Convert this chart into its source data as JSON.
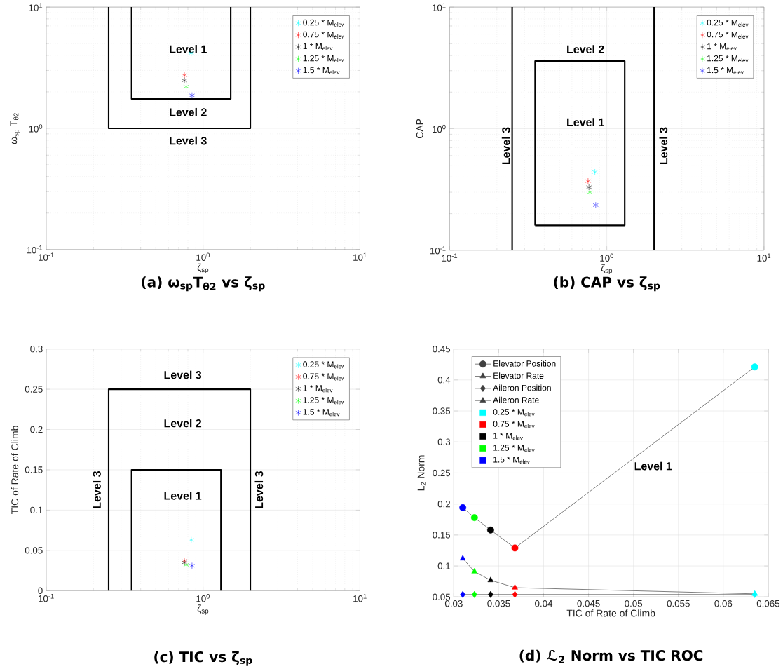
{
  "chart_data": [
    {
      "type": "scatter",
      "title": "(a) ω$_{sp}$T$_{θ2}$ vs ζ$_{sp}$",
      "xlabel": "ζ$_{sp}$",
      "ylabel": "ω$_{sp}$ T$_{θ2}$",
      "log": "xy",
      "xlim": [
        0.1,
        10
      ],
      "ylim": [
        0.1,
        10
      ],
      "xticks": [
        {
          "value": 0.1,
          "label": "10$^{-1}$"
        },
        {
          "value": 1,
          "label": "10$^{0}$"
        },
        {
          "value": 10,
          "label": "10$^{1}$"
        }
      ],
      "yticks": [
        {
          "value": 0.1,
          "label": "10$^{-1}$"
        },
        {
          "value": 1,
          "label": "10$^{0}$"
        },
        {
          "value": 10,
          "label": "10$^{1}$"
        }
      ],
      "grid": true,
      "legend": "top right",
      "marker": "cross",
      "series": [
        {
          "name": "0.25 * M$_{elev}$",
          "color": "#00ffff",
          "x": [
            0.84
          ],
          "values": [
            4.17
          ]
        },
        {
          "name": "0.75 * M$_{elev}$",
          "color": "#ff0000",
          "x": [
            0.76
          ],
          "values": [
            2.74
          ]
        },
        {
          "name": "1 * M$_{elev}$",
          "color": "#000000",
          "x": [
            0.76
          ],
          "values": [
            2.48
          ]
        },
        {
          "name": "1.25 * M$_{elev}$",
          "color": "#00ff00",
          "x": [
            0.78
          ],
          "values": [
            2.21
          ]
        },
        {
          "name": "1.5 * M$_{elev}$",
          "color": "#0000ff",
          "x": [
            0.85
          ],
          "values": [
            1.87
          ]
        },
        {
          "type": "line",
          "color": "#000000",
          "marker": "none",
          "x": [
            0.35,
            0.35,
            1.5,
            1.5
          ],
          "values": [
            10,
            1.75,
            1.75,
            10
          ]
        },
        {
          "type": "line",
          "color": "#000000",
          "marker": "none",
          "x": [
            0.25,
            0.25,
            2,
            2
          ],
          "values": [
            10,
            1,
            1,
            10
          ]
        }
      ],
      "annotations": [
        "Level 1",
        "Level 2",
        "Level 3"
      ]
    },
    {
      "type": "scatter",
      "title": "(b) CAP vs ζ$_{sp}$",
      "xlabel": "ζ$_{sp}$",
      "ylabel": "CAP",
      "log": "xy",
      "xlim": [
        0.1,
        10
      ],
      "ylim": [
        0.1,
        10
      ],
      "xticks": [
        {
          "value": 0.1,
          "label": "10$^{-1}$"
        },
        {
          "value": 1,
          "label": "10$^{0}$"
        },
        {
          "value": 10,
          "label": "10$^{1}$"
        }
      ],
      "yticks": [
        {
          "value": 0.1,
          "label": "10$^{-1}$"
        },
        {
          "value": 1,
          "label": "10$^{0}$"
        },
        {
          "value": 10,
          "label": "10$^{1}$"
        }
      ],
      "grid": true,
      "legend": "top right",
      "marker": "cross",
      "series": [
        {
          "name": "0.25 * M$_{elev}$",
          "color": "#00ffff",
          "x": [
            0.84
          ],
          "values": [
            0.44
          ]
        },
        {
          "name": "0.75 * M$_{elev}$",
          "color": "#ff0000",
          "x": [
            0.76
          ],
          "values": [
            0.37
          ]
        },
        {
          "name": "1 * M$_{elev}$",
          "color": "#000000",
          "x": [
            0.77
          ],
          "values": [
            0.33
          ]
        },
        {
          "name": "1.25 * M$_{elev}$",
          "color": "#00ff00",
          "x": [
            0.78
          ],
          "values": [
            0.3
          ]
        },
        {
          "name": "1.5 * M$_{elev}$",
          "color": "#0000ff",
          "x": [
            0.85
          ],
          "values": [
            0.235
          ]
        },
        {
          "type": "line",
          "color": "#000000",
          "marker": "none",
          "x": [
            0.25,
            0.25
          ],
          "values": [
            0.1,
            10
          ]
        },
        {
          "type": "line",
          "color": "#000000",
          "marker": "none",
          "x": [
            2,
            2
          ],
          "values": [
            0.1,
            10
          ]
        },
        {
          "type": "line",
          "color": "#000000",
          "marker": "none",
          "x": [
            0.35,
            0.35,
            1.3,
            1.3
          ],
          "values": [
            0.16,
            3.6,
            3.6,
            0.16
          ]
        },
        {
          "type": "line",
          "color": "#000000",
          "marker": "none",
          "x": [
            0.35,
            1.3
          ],
          "values": [
            0.16,
            0.16
          ]
        }
      ],
      "annotations": [
        "Level 2",
        "Level 1",
        "Level 3",
        "Level 3"
      ]
    },
    {
      "type": "scatter",
      "title": "(c) TIC vs ζ$_{sp}$",
      "xlabel": "ζ$_{sp}$",
      "ylabel": "TIC of Rate of Climb",
      "log": "x",
      "xlim": [
        0.1,
        10
      ],
      "ylim": [
        0,
        0.3
      ],
      "xticks": [
        {
          "value": 0.1,
          "label": "10$^{-1}$"
        },
        {
          "value": 1,
          "label": "10$^{0}$"
        },
        {
          "value": 10,
          "label": "10$^{1}$"
        }
      ],
      "yticks": [
        0,
        0.05,
        0.1,
        0.15,
        0.2,
        0.25,
        0.3
      ],
      "grid": true,
      "legend": "top right",
      "marker": "cross",
      "series": [
        {
          "name": "0.25 * M$_{elev}$",
          "color": "#00ffff",
          "x": [
            0.84
          ],
          "values": [
            0.063
          ]
        },
        {
          "name": "0.75 * M$_{elev}$",
          "color": "#ff0000",
          "x": [
            0.76
          ],
          "values": [
            0.037
          ]
        },
        {
          "name": "1 * M$_{elev}$",
          "color": "#000000",
          "x": [
            0.76
          ],
          "values": [
            0.035
          ]
        },
        {
          "name": "1.25 * M$_{elev}$",
          "color": "#00ff00",
          "x": [
            0.78
          ],
          "values": [
            0.032
          ]
        },
        {
          "name": "1.5 * M$_{elev}$",
          "color": "#0000ff",
          "x": [
            0.85
          ],
          "values": [
            0.031
          ]
        },
        {
          "type": "line",
          "color": "#000000",
          "marker": "none",
          "x": [
            0.25,
            0.25,
            2,
            2
          ],
          "values": [
            0,
            0.25,
            0.25,
            0
          ]
        },
        {
          "type": "line",
          "color": "#000000",
          "marker": "none",
          "x": [
            0.35,
            0.35,
            1.3,
            1.3
          ],
          "values": [
            0,
            0.15,
            0.15,
            0
          ]
        }
      ],
      "annotations": [
        "Level 3",
        "Level 2",
        "Level 1",
        "Level 3",
        "Level 3"
      ]
    },
    {
      "type": "line",
      "title": "(d) ℒ$_{2}$ Norm vs TIC ROC",
      "xlabel": "TIC of Rate of Climb",
      "ylabel": "L$_{2}$ Norm",
      "xlim": [
        0.03,
        0.065
      ],
      "ylim": [
        0.05,
        0.45
      ],
      "xticks": [
        0.03,
        0.035,
        0.04,
        0.045,
        0.05,
        0.055,
        0.06,
        0.065
      ],
      "yticks": [
        0.05,
        0.1,
        0.15,
        0.2,
        0.25,
        0.3,
        0.35,
        0.4,
        0.45
      ],
      "grid": true,
      "legend": "top left",
      "x": [
        0.031,
        0.0323,
        0.0341,
        0.0368,
        0.0635
      ],
      "series": [
        {
          "name": "Elevator Position",
          "color": "#404040",
          "marker": "circle",
          "colors": [
            "#0000ff",
            "#00ff00",
            "#000000",
            "#ff0000",
            "#00ffff"
          ],
          "values": [
            0.194,
            0.178,
            0.158,
            0.129,
            0.421
          ]
        },
        {
          "name": "Elevator Rate",
          "color": "#404040",
          "marker": "triangle",
          "colors": [
            "#0000ff",
            "#00ff00",
            "#000000",
            "#ff0000",
            "#00ffff"
          ],
          "values": [
            0.112,
            0.091,
            0.077,
            0.065,
            0.055
          ]
        },
        {
          "name": "Aileron Position",
          "color": "#404040",
          "marker": "diamond",
          "colors": [
            "#0000ff",
            "#00ff00",
            "#000000",
            "#ff0000",
            "#00ffff"
          ],
          "values": [
            0.054,
            0.054,
            0.054,
            0.054,
            0.054
          ]
        },
        {
          "name": "Aileron Rate",
          "color": "#404040",
          "marker": "triangle",
          "colors": [
            "#0000ff",
            "#00ff00",
            "#000000",
            "#ff0000",
            "#00ffff"
          ],
          "values": [
            null,
            null,
            null,
            null,
            null
          ]
        },
        {
          "name": "0.25 * M$_{elev}$",
          "type": "scatter",
          "marker": "square",
          "color": "#00ffff",
          "values": [
            null,
            null,
            null,
            null,
            null
          ]
        },
        {
          "name": "0.75 * M$_{elev}$",
          "type": "scatter",
          "marker": "square",
          "color": "#ff0000",
          "values": [
            null,
            null,
            null,
            null,
            null
          ]
        },
        {
          "name": "1 * M$_{elev}$",
          "type": "scatter",
          "marker": "square",
          "color": "#000000",
          "values": [
            null,
            null,
            null,
            null,
            null
          ]
        },
        {
          "name": "1.25 * M$_{elev}$",
          "type": "scatter",
          "marker": "square",
          "color": "#00ff00",
          "values": [
            null,
            null,
            null,
            null,
            null
          ]
        },
        {
          "name": "1.5 * M$_{elev}$",
          "type": "scatter",
          "marker": "square",
          "color": "#0000ff",
          "values": [
            null,
            null,
            null,
            null,
            null
          ]
        }
      ],
      "annotations": [
        "Level 1"
      ]
    }
  ]
}
